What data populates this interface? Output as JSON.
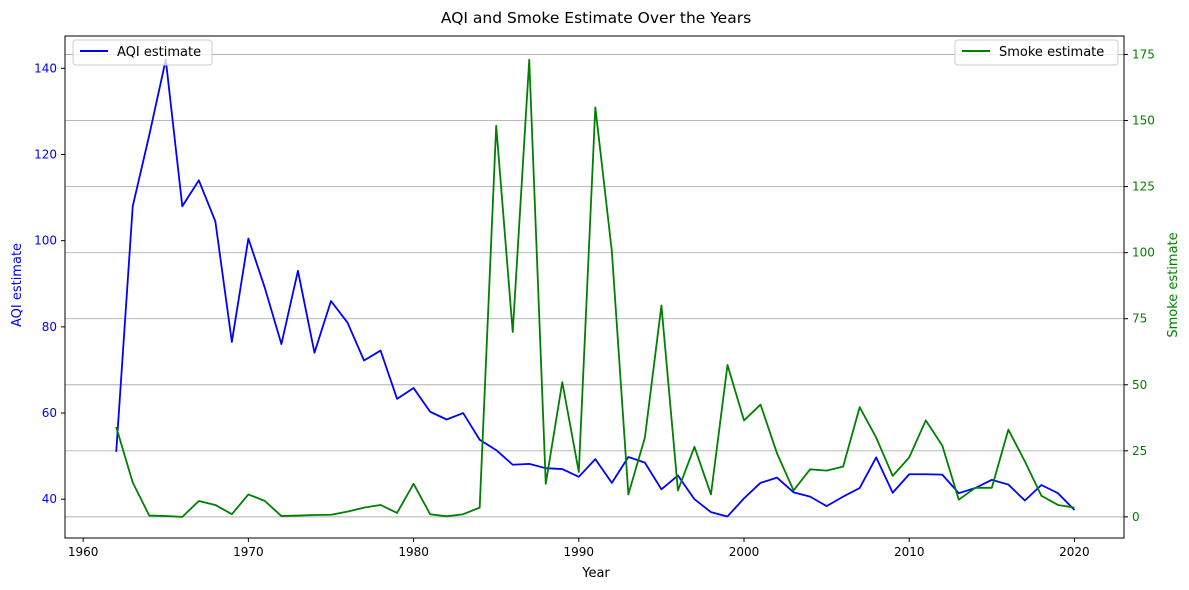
{
  "chart_data": {
    "type": "line",
    "title": "AQI and Smoke Estimate Over the Years",
    "xlabel": "Year",
    "y_left_label": "AQI estimate",
    "y_right_label": "Smoke estimate",
    "x_ticks": [
      1960,
      1970,
      1980,
      1990,
      2000,
      2010,
      2020
    ],
    "xlim": [
      1958.9,
      2023.0
    ],
    "y_left_ticks": [
      40,
      60,
      80,
      100,
      120,
      140
    ],
    "y_left_lim": [
      31.0,
      147.5
    ],
    "y_right_ticks": [
      0,
      25,
      50,
      75,
      100,
      125,
      150,
      175
    ],
    "y_right_lim": [
      -8.0,
      182.0
    ],
    "grid": "horizontal lines at right-axis ticks",
    "legend_left": "top-left",
    "legend_right": "top-right",
    "colors": {
      "aqi": "#0000ff",
      "smoke": "#008000",
      "grid": "#b0b0b0",
      "axis": "#000000"
    },
    "x": [
      1962,
      1963,
      1964,
      1965,
      1966,
      1967,
      1968,
      1969,
      1970,
      1971,
      1972,
      1973,
      1974,
      1975,
      1976,
      1977,
      1978,
      1979,
      1980,
      1981,
      1982,
      1983,
      1984,
      1985,
      1986,
      1987,
      1988,
      1989,
      1990,
      1991,
      1992,
      1993,
      1994,
      1995,
      1996,
      1997,
      1998,
      1999,
      2000,
      2001,
      2002,
      2003,
      2004,
      2005,
      2006,
      2007,
      2008,
      2009,
      2010,
      2011,
      2012,
      2013,
      2014,
      2015,
      2016,
      2017,
      2018,
      2019,
      2020
    ],
    "series": [
      {
        "name": "AQI estimate",
        "axis": "left",
        "values": [
          51.0,
          108.0,
          124.5,
          142.0,
          108.0,
          114.0,
          104.5,
          76.5,
          100.5,
          89.0,
          76.0,
          93.0,
          74.0,
          86.0,
          81.0,
          72.2,
          74.5,
          63.3,
          65.8,
          60.3,
          58.5,
          60.0,
          53.8,
          51.4,
          48.0,
          48.2,
          47.2,
          47.0,
          45.2,
          49.3,
          43.8,
          49.8,
          48.5,
          42.3,
          45.5,
          40.0,
          37.0,
          36.0,
          40.2,
          43.8,
          45.0,
          41.6,
          40.6,
          38.4,
          40.6,
          42.6,
          49.7,
          41.5,
          45.8,
          45.8,
          45.7,
          41.4,
          42.6,
          44.5,
          43.4,
          39.7,
          43.3,
          41.4,
          37.5
        ]
      },
      {
        "name": "Smoke estimate",
        "axis": "right",
        "values": [
          34.0,
          13.0,
          0.5,
          0.3,
          0.0,
          6.0,
          4.5,
          1.0,
          8.5,
          6.0,
          0.3,
          0.5,
          0.7,
          0.8,
          2.0,
          3.5,
          4.5,
          1.5,
          12.5,
          1.0,
          0.2,
          1.0,
          3.5,
          148.0,
          70.0,
          173.0,
          12.5,
          51.0,
          17.0,
          155.0,
          100.5,
          8.5,
          30.0,
          80.0,
          10.0,
          26.5,
          8.5,
          57.5,
          36.5,
          42.5,
          24.0,
          10.0,
          18.0,
          17.5,
          19.0,
          41.5,
          30.0,
          15.5,
          22.5,
          36.5,
          27.0,
          6.5,
          11.0,
          11.0,
          33.0,
          21.0,
          8.0,
          4.5,
          3.5
        ]
      }
    ]
  }
}
